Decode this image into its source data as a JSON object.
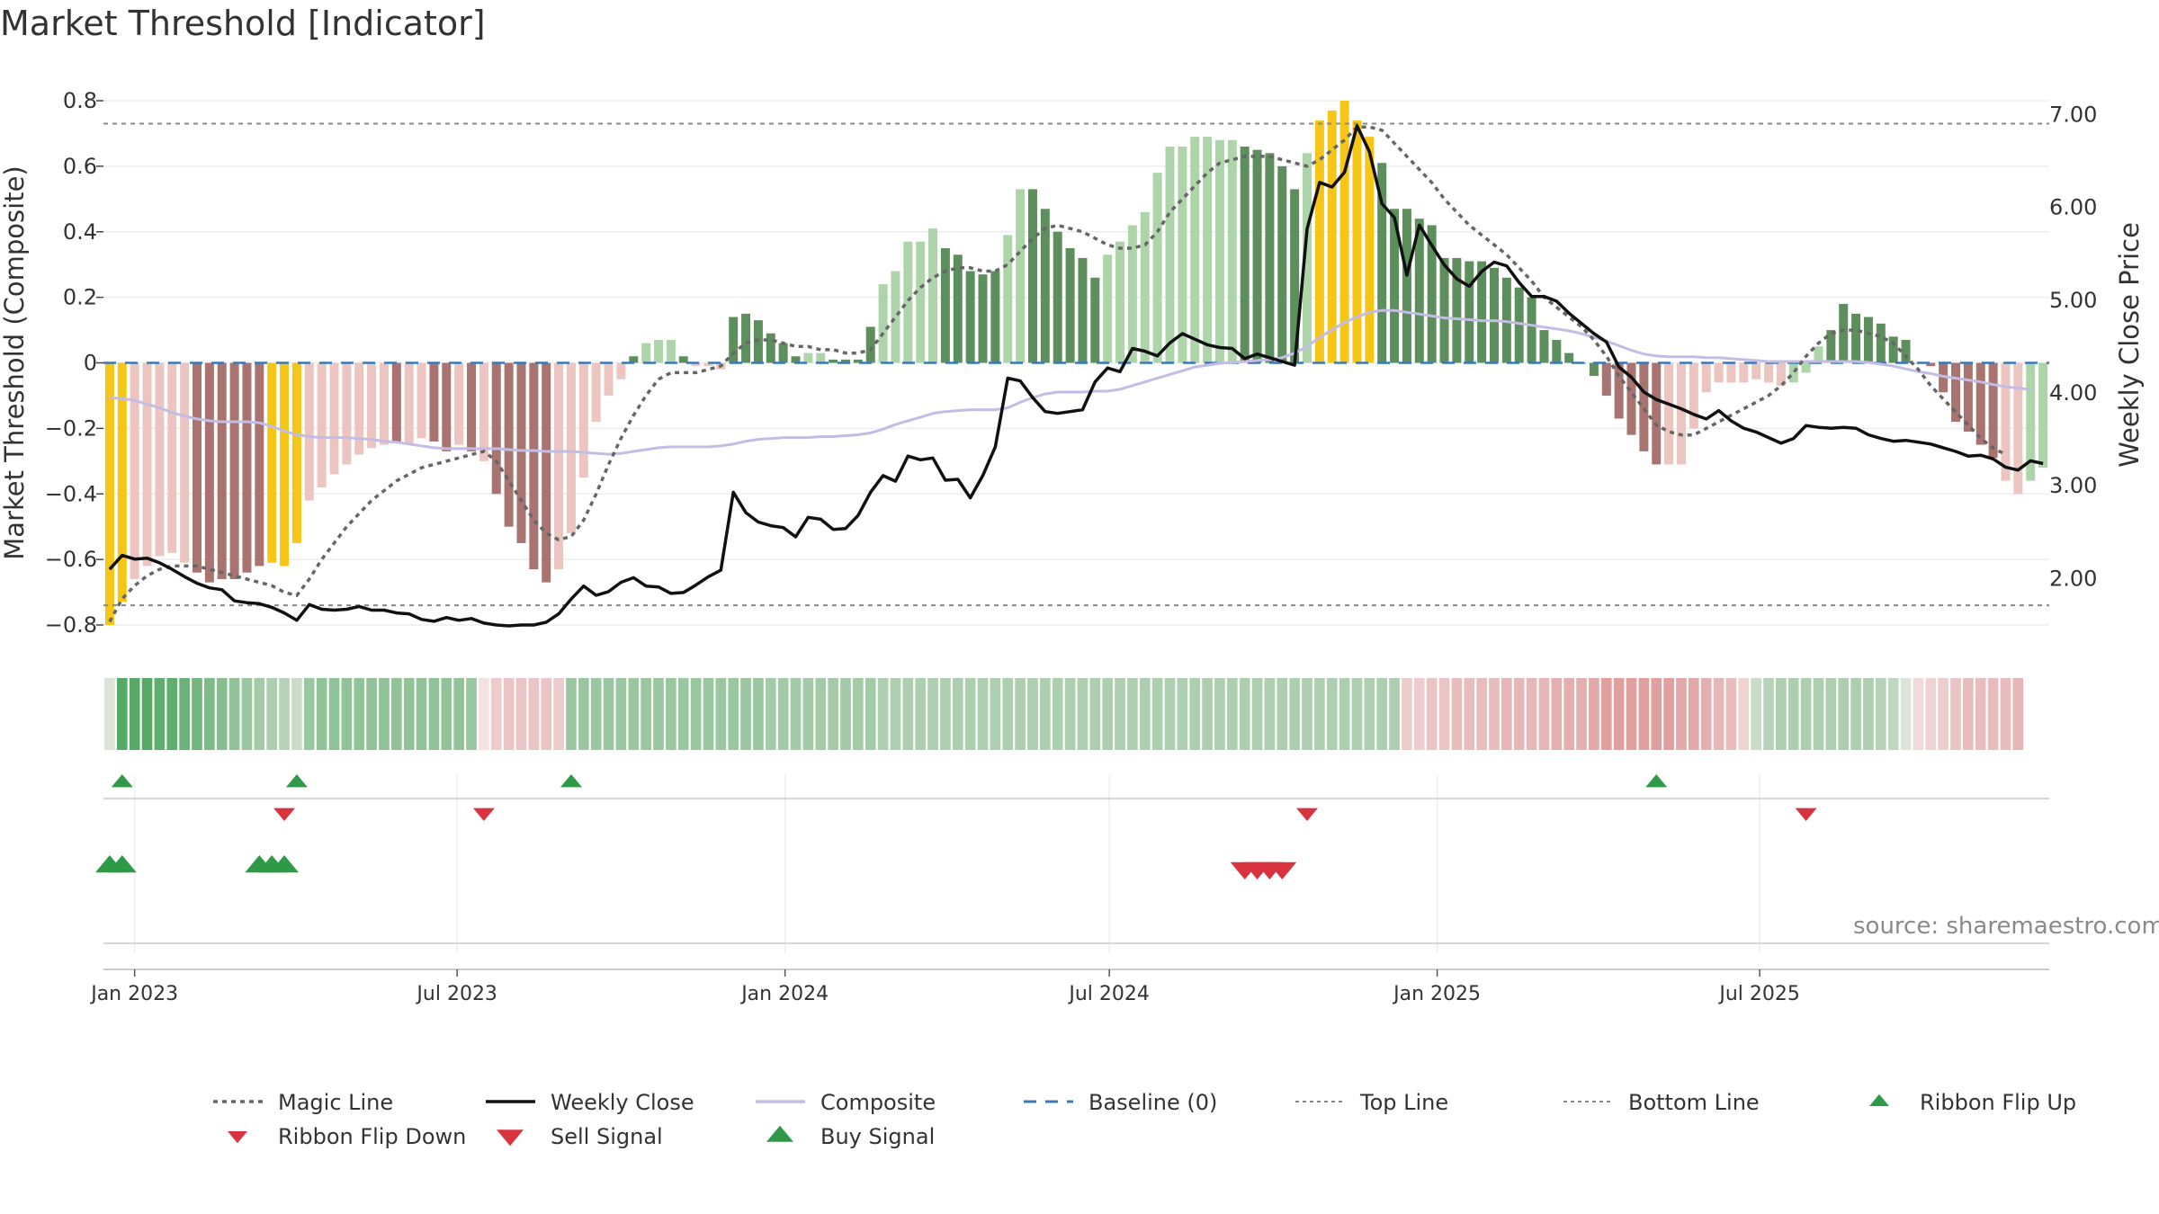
{
  "header": {
    "title": "Market Threshold [Indicator]"
  },
  "footer": {
    "source": "source: sharemaestro.com"
  },
  "colors": {
    "extreme": "#f5c518",
    "bull_strong": "#5d8f5d",
    "bull_light": "#aed5aa",
    "bear_strong": "#a9736f",
    "bear_light": "#ecc4c0",
    "magic": "#666666",
    "close": "#111111",
    "composite": "#c3bde6",
    "baseline": "#3a78b8",
    "buy": "#2e9a47",
    "sell": "#d9333f"
  },
  "chart_data": {
    "type": "bar",
    "ylabel": "Market Threshold (Composite)",
    "y2label": "Weekly Close Price",
    "ylim": [
      -0.8,
      0.8
    ],
    "y2lim": [
      1.5,
      7.15
    ],
    "y_ticks": [
      0.8,
      0.6,
      0.4,
      0.2,
      0,
      -0.2,
      -0.4,
      -0.6,
      -0.8
    ],
    "y_tick_labels": [
      "0.8",
      "0.6",
      "0.4",
      "0.2",
      "0",
      "−0.2",
      "−0.4",
      "−0.6",
      "−0.8"
    ],
    "y2_ticks": [
      7,
      6,
      5,
      4,
      3,
      2
    ],
    "y2_tick_labels": [
      "7.00",
      "6.00",
      "5.00",
      "4.00",
      "3.00",
      "2.00"
    ],
    "x_tick_labels": [
      "Jan 2023",
      "Jul 2023",
      "Jan 2024",
      "Jul 2024",
      "Jan 2025",
      "Jul 2025"
    ],
    "x_tick_dates": [
      "2023-01-01",
      "2023-07-01",
      "2024-01-01",
      "2024-07-01",
      "2025-01-01",
      "2025-07-01"
    ],
    "start_date": "2022-12-18",
    "top_line": 0.73,
    "bottom_line": -0.74,
    "bars": [
      -0.8,
      -0.73,
      -0.66,
      -0.62,
      -0.59,
      -0.58,
      -0.61,
      -0.64,
      -0.67,
      -0.66,
      -0.66,
      -0.64,
      -0.62,
      -0.61,
      -0.62,
      -0.55,
      -0.42,
      -0.38,
      -0.34,
      -0.31,
      -0.28,
      -0.26,
      -0.25,
      -0.24,
      -0.25,
      -0.23,
      -0.24,
      -0.27,
      -0.25,
      -0.27,
      -0.3,
      -0.4,
      -0.5,
      -0.55,
      -0.63,
      -0.67,
      -0.63,
      -0.52,
      -0.35,
      -0.18,
      -0.1,
      -0.05,
      0.02,
      0.06,
      0.07,
      0.07,
      0.02,
      -0.01,
      -0.01,
      -0.02,
      0.14,
      0.15,
      0.13,
      0.09,
      0.06,
      0.02,
      0.03,
      0.03,
      0.01,
      0.01,
      0.01,
      0.11,
      0.24,
      0.28,
      0.37,
      0.37,
      0.41,
      0.35,
      0.33,
      0.28,
      0.27,
      0.28,
      0.39,
      0.53,
      0.53,
      0.47,
      0.4,
      0.35,
      0.32,
      0.26,
      0.33,
      0.37,
      0.42,
      0.46,
      0.58,
      0.66,
      0.66,
      0.69,
      0.69,
      0.68,
      0.68,
      0.66,
      0.65,
      0.64,
      0.6,
      0.53,
      0.64,
      0.74,
      0.77,
      0.8,
      0.74,
      0.69,
      0.61,
      0.47,
      0.47,
      0.44,
      0.42,
      0.32,
      0.32,
      0.31,
      0.31,
      0.29,
      0.26,
      0.23,
      0.2,
      0.1,
      0.07,
      0.03,
      0.0,
      -0.04,
      -0.1,
      -0.17,
      -0.22,
      -0.27,
      -0.31,
      -0.31,
      -0.31,
      -0.2,
      -0.09,
      -0.06,
      -0.06,
      -0.06,
      -0.05,
      -0.06,
      -0.07,
      -0.06,
      -0.03,
      0.05,
      0.1,
      0.18,
      0.15,
      0.14,
      0.12,
      0.08,
      0.07,
      0.0,
      -0.01,
      -0.09,
      -0.18,
      -0.21,
      -0.25,
      -0.29,
      -0.36,
      -0.4,
      -0.36,
      -0.32
    ],
    "bar_classes": [
      "Y",
      "Y",
      "L",
      "L",
      "L",
      "L",
      "L",
      "S",
      "S",
      "S",
      "S",
      "S",
      "S",
      "Y",
      "Y",
      "Y",
      "L",
      "L",
      "L",
      "L",
      "L",
      "L",
      "L",
      "S",
      "L",
      "L",
      "S",
      "S",
      "L",
      "S",
      "L",
      "S",
      "S",
      "S",
      "S",
      "S",
      "L",
      "L",
      "L",
      "L",
      "L",
      "L",
      "G",
      "g",
      "g",
      "g",
      "G",
      "l",
      "l",
      "l",
      "G",
      "G",
      "G",
      "G",
      "G",
      "G",
      "g",
      "g",
      "G",
      "G",
      "G",
      "G",
      "g",
      "g",
      "g",
      "g",
      "g",
      "G",
      "G",
      "G",
      "G",
      "G",
      "g",
      "g",
      "G",
      "G",
      "G",
      "G",
      "G",
      "G",
      "g",
      "g",
      "g",
      "g",
      "g",
      "g",
      "g",
      "g",
      "g",
      "g",
      "g",
      "G",
      "G",
      "G",
      "G",
      "G",
      "g",
      "Y",
      "Y",
      "Y",
      "Y",
      "Y",
      "G",
      "G",
      "G",
      "G",
      "G",
      "G",
      "G",
      "G",
      "G",
      "G",
      "G",
      "G",
      "G",
      "G",
      "G",
      "G",
      "G",
      "G",
      "S",
      "S",
      "S",
      "S",
      "S",
      "L",
      "L",
      "L",
      "L",
      "L",
      "L",
      "L",
      "L",
      "L",
      "L",
      "g",
      "g",
      "g",
      "G",
      "G",
      "G",
      "G",
      "G",
      "G",
      "G",
      "L",
      "S",
      "S",
      "S",
      "S",
      "S",
      "S",
      "L",
      "L"
    ],
    "magic_line": [
      -0.79,
      -0.72,
      -0.68,
      -0.65,
      -0.63,
      -0.62,
      -0.62,
      -0.62,
      -0.63,
      -0.64,
      -0.65,
      -0.66,
      -0.67,
      -0.68,
      -0.7,
      -0.71,
      -0.66,
      -0.6,
      -0.55,
      -0.5,
      -0.46,
      -0.42,
      -0.39,
      -0.36,
      -0.34,
      -0.32,
      -0.31,
      -0.3,
      -0.29,
      -0.28,
      -0.27,
      -0.3,
      -0.36,
      -0.42,
      -0.48,
      -0.52,
      -0.54,
      -0.53,
      -0.48,
      -0.4,
      -0.31,
      -0.23,
      -0.16,
      -0.1,
      -0.05,
      -0.03,
      -0.03,
      -0.03,
      -0.02,
      -0.01,
      0.03,
      0.06,
      0.07,
      0.07,
      0.06,
      0.05,
      0.05,
      0.04,
      0.04,
      0.03,
      0.03,
      0.04,
      0.09,
      0.14,
      0.19,
      0.23,
      0.26,
      0.28,
      0.29,
      0.29,
      0.28,
      0.28,
      0.3,
      0.34,
      0.38,
      0.41,
      0.42,
      0.41,
      0.4,
      0.38,
      0.36,
      0.35,
      0.35,
      0.36,
      0.4,
      0.46,
      0.5,
      0.54,
      0.58,
      0.61,
      0.62,
      0.63,
      0.63,
      0.63,
      0.62,
      0.61,
      0.6,
      0.62,
      0.65,
      0.68,
      0.72,
      0.72,
      0.71,
      0.67,
      0.63,
      0.59,
      0.55,
      0.5,
      0.46,
      0.42,
      0.39,
      0.36,
      0.33,
      0.29,
      0.25,
      0.2,
      0.17,
      0.14,
      0.11,
      0.07,
      0.02,
      -0.04,
      -0.09,
      -0.14,
      -0.19,
      -0.21,
      -0.22,
      -0.22,
      -0.2,
      -0.18,
      -0.16,
      -0.14,
      -0.12,
      -0.1,
      -0.07,
      -0.03,
      0.02,
      0.06,
      0.09,
      0.1,
      0.1,
      0.09,
      0.08,
      0.06,
      0.02,
      -0.02,
      -0.07,
      -0.11,
      -0.15,
      -0.19,
      -0.23,
      -0.26,
      -0.28
    ],
    "composite": [
      3.95,
      3.94,
      3.92,
      3.88,
      3.84,
      3.79,
      3.75,
      3.72,
      3.7,
      3.69,
      3.69,
      3.69,
      3.68,
      3.64,
      3.59,
      3.55,
      3.53,
      3.52,
      3.52,
      3.52,
      3.51,
      3.5,
      3.48,
      3.47,
      3.45,
      3.43,
      3.41,
      3.4,
      3.4,
      3.4,
      3.4,
      3.4,
      3.39,
      3.38,
      3.38,
      3.37,
      3.37,
      3.37,
      3.36,
      3.35,
      3.34,
      3.35,
      3.37,
      3.39,
      3.41,
      3.42,
      3.42,
      3.42,
      3.42,
      3.43,
      3.45,
      3.48,
      3.5,
      3.51,
      3.52,
      3.52,
      3.52,
      3.53,
      3.53,
      3.54,
      3.55,
      3.57,
      3.61,
      3.66,
      3.7,
      3.74,
      3.78,
      3.8,
      3.81,
      3.82,
      3.82,
      3.82,
      3.84,
      3.9,
      3.95,
      3.99,
      4.01,
      4.01,
      4.01,
      4.02,
      4.02,
      4.04,
      4.08,
      4.12,
      4.16,
      4.2,
      4.24,
      4.28,
      4.3,
      4.32,
      4.33,
      4.34,
      4.35,
      4.36,
      4.38,
      4.43,
      4.5,
      4.6,
      4.68,
      4.76,
      4.82,
      4.87,
      4.89,
      4.89,
      4.87,
      4.85,
      4.83,
      4.81,
      4.8,
      4.79,
      4.78,
      4.78,
      4.77,
      4.75,
      4.73,
      4.71,
      4.69,
      4.67,
      4.64,
      4.6,
      4.56,
      4.51,
      4.46,
      4.42,
      4.4,
      4.39,
      4.39,
      4.39,
      4.38,
      4.38,
      4.37,
      4.36,
      4.35,
      4.34,
      4.34,
      4.34,
      4.34,
      4.34,
      4.34,
      4.34,
      4.34,
      4.33,
      4.31,
      4.29,
      4.26,
      4.23,
      4.21,
      4.18,
      4.16,
      4.14,
      4.12,
      4.09,
      4.07,
      4.05,
      4.04
    ],
    "weekly_close": [
      2.1,
      2.25,
      2.21,
      2.22,
      2.17,
      2.1,
      2.02,
      1.95,
      1.9,
      1.88,
      1.76,
      1.74,
      1.73,
      1.69,
      1.63,
      1.55,
      1.72,
      1.67,
      1.66,
      1.67,
      1.7,
      1.66,
      1.66,
      1.63,
      1.62,
      1.56,
      1.54,
      1.58,
      1.55,
      1.57,
      1.52,
      1.5,
      1.49,
      1.5,
      1.5,
      1.53,
      1.62,
      1.78,
      1.92,
      1.82,
      1.86,
      1.96,
      2.01,
      1.92,
      1.91,
      1.84,
      1.85,
      1.93,
      2.02,
      2.09,
      2.93,
      2.71,
      2.61,
      2.57,
      2.55,
      2.45,
      2.66,
      2.64,
      2.53,
      2.54,
      2.68,
      2.93,
      3.11,
      3.05,
      3.32,
      3.28,
      3.3,
      3.06,
      3.07,
      2.87,
      3.11,
      3.42,
      4.16,
      4.13,
      3.95,
      3.8,
      3.78,
      3.8,
      3.82,
      4.12,
      4.27,
      4.23,
      4.48,
      4.45,
      4.4,
      4.54,
      4.64,
      4.58,
      4.52,
      4.49,
      4.48,
      4.37,
      4.42,
      4.38,
      4.34,
      4.3,
      5.77,
      6.27,
      6.22,
      6.38,
      6.88,
      6.6,
      6.04,
      5.89,
      5.27,
      5.81,
      5.59,
      5.38,
      5.23,
      5.15,
      5.31,
      5.41,
      5.37,
      5.19,
      5.04,
      5.04,
      4.99,
      4.86,
      4.75,
      4.64,
      4.55,
      4.28,
      4.17,
      4.01,
      3.93,
      3.88,
      3.83,
      3.77,
      3.72,
      3.81,
      3.7,
      3.62,
      3.58,
      3.52,
      3.46,
      3.51,
      3.65,
      3.63,
      3.62,
      3.63,
      3.62,
      3.55,
      3.51,
      3.48,
      3.49,
      3.47,
      3.45,
      3.41,
      3.37,
      3.32,
      3.33,
      3.29,
      3.2,
      3.17,
      3.27,
      3.24
    ],
    "ribbon": [
      0.15,
      0.85,
      0.85,
      0.85,
      0.8,
      0.8,
      0.75,
      0.7,
      0.65,
      0.6,
      0.55,
      0.5,
      0.45,
      0.4,
      0.35,
      0.25,
      0.5,
      0.55,
      0.55,
      0.55,
      0.55,
      0.55,
      0.55,
      0.55,
      0.55,
      0.55,
      0.55,
      0.55,
      0.55,
      0.5,
      -0.1,
      -0.25,
      -0.3,
      -0.3,
      -0.3,
      -0.3,
      -0.25,
      0.5,
      0.5,
      0.5,
      0.5,
      0.5,
      0.5,
      0.5,
      0.5,
      0.5,
      0.5,
      0.5,
      0.5,
      0.5,
      0.5,
      0.5,
      0.5,
      0.45,
      0.45,
      0.45,
      0.45,
      0.45,
      0.45,
      0.45,
      0.45,
      0.45,
      0.4,
      0.4,
      0.4,
      0.4,
      0.4,
      0.4,
      0.4,
      0.4,
      0.4,
      0.4,
      0.4,
      0.4,
      0.4,
      0.4,
      0.4,
      0.4,
      0.4,
      0.4,
      0.4,
      0.4,
      0.4,
      0.4,
      0.4,
      0.4,
      0.4,
      0.4,
      0.4,
      0.4,
      0.4,
      0.4,
      0.4,
      0.4,
      0.4,
      0.4,
      0.4,
      0.4,
      0.4,
      0.4,
      0.4,
      0.4,
      0.4,
      0.4,
      -0.25,
      -0.25,
      -0.3,
      -0.3,
      -0.35,
      -0.35,
      -0.35,
      -0.35,
      -0.4,
      -0.4,
      -0.4,
      -0.4,
      -0.45,
      -0.45,
      -0.45,
      -0.5,
      -0.55,
      -0.55,
      -0.55,
      -0.55,
      -0.55,
      -0.55,
      -0.5,
      -0.5,
      -0.45,
      -0.4,
      -0.35,
      -0.2,
      0.25,
      0.35,
      0.4,
      0.4,
      0.4,
      0.4,
      0.4,
      0.4,
      0.4,
      0.4,
      0.35,
      0.3,
      0.15,
      -0.15,
      -0.2,
      -0.25,
      -0.3,
      -0.35,
      -0.35,
      -0.35,
      -0.35,
      -0.4
    ],
    "ribbon_flip_up": [
      1,
      15,
      37,
      124
    ],
    "ribbon_flip_down": [
      14,
      30,
      96,
      136
    ],
    "sell_signals": [
      91,
      92,
      93,
      94
    ],
    "buy_signals": [
      0,
      1,
      12,
      13,
      14
    ],
    "legend": [
      {
        "label": "Magic Line",
        "kind": "dotted",
        "color": "#666666"
      },
      {
        "label": "Weekly Close",
        "kind": "solid",
        "color": "#111111"
      },
      {
        "label": "Composite",
        "kind": "solid",
        "color": "#c3bde6"
      },
      {
        "label": "Baseline (0)",
        "kind": "dashed",
        "color": "#3a78b8"
      },
      {
        "label": "Top Line",
        "kind": "finedot",
        "color": "#888888"
      },
      {
        "label": "Bottom Line",
        "kind": "finedot",
        "color": "#888888"
      },
      {
        "label": "Ribbon Flip Up",
        "kind": "tri-up-small",
        "color": "#2e9a47"
      },
      {
        "label": "Ribbon Flip Down",
        "kind": "tri-down-small",
        "color": "#d9333f"
      },
      {
        "label": "Sell Signal",
        "kind": "tri-down",
        "color": "#d9333f"
      },
      {
        "label": "Buy Signal",
        "kind": "tri-up",
        "color": "#2e9a47"
      }
    ]
  }
}
